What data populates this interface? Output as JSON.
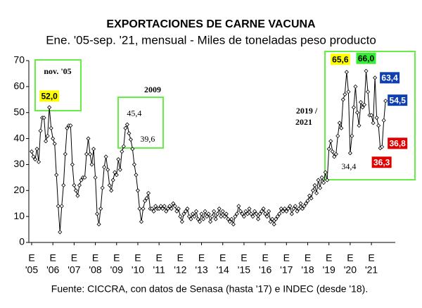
{
  "chart_data": {
    "type": "line",
    "title": "EXPORTACIONES DE CARNE VACUNA",
    "subtitle": "Ene. '05-sep. '21, mensual - Miles de toneladas peso producto",
    "source": "Fuente: CICCRA, con datos de Senasa (hasta '17) e INDEC (desde '18).",
    "annotations": [
      "nov. '05",
      "2009",
      "2019 /",
      "2021"
    ],
    "color": "#000000",
    "ylim": [
      0,
      70
    ],
    "yticks": [
      0,
      10,
      20,
      30,
      40,
      50,
      60,
      70
    ],
    "grid": false,
    "categories": [
      [
        "E",
        "'05"
      ],
      null,
      null,
      null,
      null,
      null,
      null,
      null,
      null,
      null,
      null,
      null,
      [
        "E",
        "'06"
      ],
      null,
      null,
      null,
      null,
      null,
      null,
      null,
      null,
      null,
      null,
      null,
      [
        "E",
        "'07"
      ],
      null,
      null,
      null,
      null,
      null,
      null,
      null,
      null,
      null,
      null,
      null,
      [
        "E",
        "'08"
      ],
      null,
      null,
      null,
      null,
      null,
      null,
      null,
      null,
      null,
      null,
      null,
      [
        "E",
        "'09"
      ],
      null,
      null,
      null,
      null,
      null,
      null,
      null,
      null,
      null,
      null,
      null,
      [
        "E",
        "'10"
      ],
      null,
      null,
      null,
      null,
      null,
      null,
      null,
      null,
      null,
      null,
      null,
      [
        "E",
        "'11"
      ],
      null,
      null,
      null,
      null,
      null,
      null,
      null,
      null,
      null,
      null,
      null,
      [
        "E",
        "'12"
      ],
      null,
      null,
      null,
      null,
      null,
      null,
      null,
      null,
      null,
      null,
      null,
      [
        "E",
        "'13"
      ],
      null,
      null,
      null,
      null,
      null,
      null,
      null,
      null,
      null,
      null,
      null,
      [
        "E",
        "'14"
      ],
      null,
      null,
      null,
      null,
      null,
      null,
      null,
      null,
      null,
      null,
      null,
      [
        "E",
        "'15"
      ],
      null,
      null,
      null,
      null,
      null,
      null,
      null,
      null,
      null,
      null,
      null,
      [
        "E",
        "'16"
      ],
      null,
      null,
      null,
      null,
      null,
      null,
      null,
      null,
      null,
      null,
      null,
      [
        "E",
        "'17"
      ],
      null,
      null,
      null,
      null,
      null,
      null,
      null,
      null,
      null,
      null,
      null,
      [
        "E",
        "'18"
      ],
      null,
      null,
      null,
      null,
      null,
      null,
      null,
      null,
      null,
      null,
      null,
      [
        "E",
        "'19"
      ],
      null,
      null,
      null,
      null,
      null,
      null,
      null,
      null,
      null,
      null,
      null,
      [
        "E",
        "'20"
      ],
      null,
      null,
      null,
      null,
      null,
      null,
      null,
      null,
      null,
      null,
      null,
      [
        "E",
        "'21"
      ],
      null,
      null,
      null,
      null,
      null,
      null,
      null,
      null
    ],
    "values": [
      35,
      33,
      32,
      36,
      31,
      43,
      48,
      48,
      39,
      41,
      52,
      44,
      40,
      38,
      26,
      14,
      4,
      14,
      22,
      34,
      44,
      45,
      45,
      30,
      22,
      20,
      18,
      22,
      24,
      25,
      25,
      34,
      40,
      34,
      30,
      36,
      25,
      11,
      7,
      13,
      21,
      29,
      33,
      28,
      22,
      20,
      24,
      27,
      26,
      32,
      28,
      35,
      37,
      44,
      45.4,
      42,
      39.6,
      36,
      30,
      26,
      20,
      13,
      8,
      13,
      16,
      17,
      19,
      13,
      13,
      12,
      14,
      13,
      13,
      14,
      13,
      14,
      12,
      13,
      14,
      13,
      15,
      14,
      12,
      13,
      10,
      8,
      11,
      12,
      13,
      10,
      9,
      11,
      10,
      12,
      9,
      8,
      11,
      9,
      12,
      10,
      11,
      8,
      10,
      12,
      9,
      11,
      13,
      10,
      12,
      10,
      11,
      9,
      8,
      9,
      7,
      10,
      11,
      14,
      12,
      11,
      10,
      12,
      11,
      13,
      11,
      10,
      12,
      11,
      9,
      11,
      12,
      13,
      11,
      10,
      12,
      8,
      9,
      7,
      9,
      10,
      11,
      13,
      12,
      13,
      12,
      13,
      14,
      11,
      13,
      14,
      12,
      13,
      15,
      13,
      14,
      15,
      16,
      18,
      17,
      20,
      22,
      19,
      24,
      21,
      25,
      23,
      27,
      24,
      36,
      39,
      35,
      33,
      34,
      41,
      46,
      44,
      55,
      57,
      65.6,
      58,
      34.4,
      41,
      52,
      60,
      50,
      45,
      54,
      52,
      53,
      66,
      58,
      49,
      49,
      46,
      63.4,
      48,
      45,
      36.3,
      36.8,
      47,
      54.5
    ],
    "value_labels": [
      null,
      null,
      null,
      null,
      null,
      null,
      null,
      null,
      null,
      null,
      "52,0",
      null,
      null,
      null,
      null,
      null,
      null,
      null,
      null,
      null,
      null,
      null,
      null,
      null,
      null,
      null,
      null,
      null,
      null,
      null,
      null,
      null,
      null,
      null,
      null,
      null,
      null,
      null,
      null,
      null,
      null,
      null,
      null,
      null,
      null,
      null,
      null,
      null,
      null,
      null,
      null,
      null,
      null,
      null,
      "45,4",
      null,
      "39,6",
      null,
      null,
      null,
      null,
      null,
      null,
      null,
      null,
      null,
      null,
      null,
      null,
      null,
      null,
      null,
      null,
      null,
      null,
      null,
      null,
      null,
      null,
      null,
      null,
      null,
      null,
      null,
      null,
      null,
      null,
      null,
      null,
      null,
      null,
      null,
      null,
      null,
      null,
      null,
      null,
      null,
      null,
      null,
      null,
      null,
      null,
      null,
      null,
      null,
      null,
      null,
      null,
      null,
      null,
      null,
      null,
      null,
      null,
      null,
      null,
      null,
      null,
      null,
      null,
      null,
      null,
      null,
      null,
      null,
      null,
      null,
      null,
      null,
      null,
      null,
      null,
      null,
      null,
      null,
      null,
      null,
      null,
      null,
      null,
      null,
      null,
      null,
      null,
      null,
      null,
      null,
      null,
      null,
      null,
      null,
      null,
      null,
      null,
      null,
      null,
      null,
      null,
      null,
      null,
      null,
      null,
      null,
      null,
      null,
      null,
      null,
      null,
      null,
      null,
      null,
      null,
      null,
      null,
      null,
      null,
      null,
      "65,6",
      null,
      "34,4",
      null,
      null,
      null,
      null,
      null,
      null,
      null,
      null,
      "66,0",
      null,
      null,
      null,
      null,
      "63,4",
      null,
      null,
      "36,3",
      "36,8",
      null,
      "54,5"
    ]
  }
}
